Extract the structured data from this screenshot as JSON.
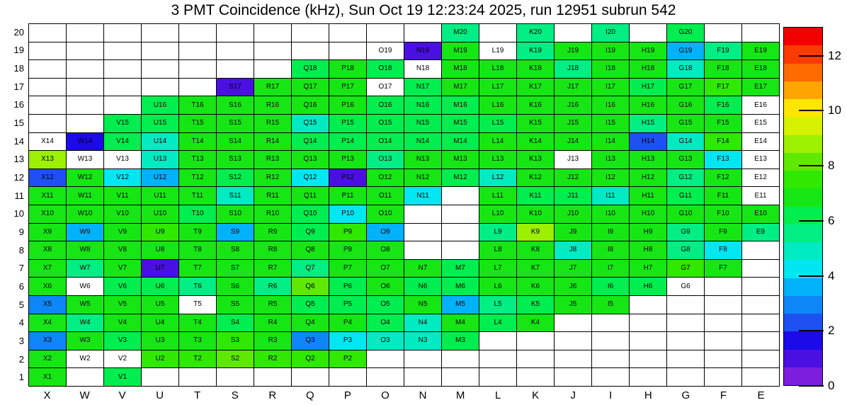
{
  "title": "3 PMT Coincidence (kHz), Sun Oct 19 12:23:24 2025, run 12951 subrun 542",
  "chart_data": {
    "type": "heatmap",
    "unit": "kHz",
    "columns": [
      "X",
      "W",
      "V",
      "U",
      "T",
      "S",
      "R",
      "Q",
      "P",
      "O",
      "N",
      "M",
      "L",
      "K",
      "J",
      "I",
      "H",
      "G",
      "F",
      "E"
    ],
    "rows": [
      20,
      19,
      18,
      17,
      16,
      15,
      14,
      13,
      12,
      11,
      10,
      9,
      8,
      7,
      6,
      5,
      4,
      3,
      2,
      1
    ],
    "cells": {
      "M20": 5.7,
      "K20": 5.7,
      "I20": 5.7,
      "G20": 6.2,
      "O19": null,
      "N19": 1.0,
      "M19": 6.9,
      "L19": null,
      "K19": 5.6,
      "J19": 6.9,
      "I19": 6.9,
      "H19": 6.9,
      "G19": 3.6,
      "F19": 5.8,
      "E19": 6.9,
      "Q18": 6.2,
      "P18": 6.9,
      "O18": 6.2,
      "N18": null,
      "M18": 6.9,
      "L18": 6.9,
      "K18": 6.9,
      "J18": 5.6,
      "I18": 6.9,
      "H18": 6.9,
      "G18": 4.8,
      "F18": 6.9,
      "E18": 6.9,
      "S17": 1.0,
      "R17": 6.9,
      "Q17": 6.9,
      "P17": 6.9,
      "O17": null,
      "N17": 6.2,
      "M17": 6.9,
      "L17": 6.9,
      "K17": 6.9,
      "J17": 6.9,
      "I17": 6.9,
      "H17": 6.0,
      "G17": 6.9,
      "F17": 7.5,
      "E17": 6.9,
      "U16": 6.2,
      "T16": 6.9,
      "S16": 6.9,
      "R16": 6.9,
      "Q16": 6.9,
      "P16": 6.9,
      "O16": 6.2,
      "N16": 6.2,
      "M16": 6.2,
      "L16": 6.9,
      "K16": 6.9,
      "J16": 6.9,
      "I16": 6.9,
      "H16": 6.9,
      "G16": 6.9,
      "F16": 6.2,
      "E16": null,
      "V15": 6.2,
      "U15": 6.2,
      "T15": 6.9,
      "S15": 6.9,
      "R15": 6.9,
      "Q15": 4.9,
      "P15": 6.2,
      "O15": 6.2,
      "N15": 6.2,
      "M15": 6.2,
      "L15": 6.2,
      "K15": 6.9,
      "J15": 6.9,
      "I15": 6.9,
      "H15": 5.7,
      "G15": 6.9,
      "F15": 6.9,
      "E15": null,
      "X14": null,
      "W14": 1.6,
      "V14": 6.0,
      "U14": 4.8,
      "T14": 6.9,
      "S14": 6.9,
      "R14": 6.9,
      "Q14": 6.2,
      "P14": 6.2,
      "O14": 6.2,
      "N14": 6.2,
      "M14": 6.2,
      "L14": 6.9,
      "K14": 6.9,
      "J14": 6.9,
      "I14": 6.9,
      "H14": 2.3,
      "G14": 4.8,
      "F14": 7.5,
      "E14": null,
      "X13": 8.8,
      "W13": null,
      "V13": null,
      "U13": 4.8,
      "T13": 6.9,
      "S13": 6.9,
      "R13": 6.9,
      "Q13": 6.9,
      "P13": 6.9,
      "O13": 5.6,
      "N13": 6.9,
      "M13": 6.9,
      "L13": 6.9,
      "K13": 6.9,
      "J13": null,
      "I13": 6.9,
      "H13": 6.9,
      "G13": 6.9,
      "F13": 4.2,
      "E13": null,
      "X12": 2.3,
      "W12": 6.9,
      "V12": 4.3,
      "U12": 3.6,
      "T12": 6.9,
      "S12": 6.2,
      "R12": 6.9,
      "Q12": 4.2,
      "P12": 0.9,
      "O12": 6.9,
      "N12": 6.9,
      "M12": 6.2,
      "L12": 4.8,
      "K12": 6.9,
      "J12": 6.9,
      "I12": 6.9,
      "H12": 6.9,
      "G12": 5.6,
      "F12": 6.9,
      "E12": null,
      "X11": 6.9,
      "W11": 6.9,
      "V11": 6.9,
      "U11": 6.9,
      "T11": 6.9,
      "S11": 4.8,
      "R11": 6.9,
      "Q11": 6.9,
      "P11": 6.9,
      "O11": 6.9,
      "N11": 4.2,
      "L11": 6.9,
      "K11": 6.2,
      "J11": 6.2,
      "I11": 4.8,
      "H11": 6.9,
      "G11": 6.0,
      "F11": 6.9,
      "E11": null,
      "X10": 6.9,
      "W10": 6.9,
      "V10": 6.9,
      "U10": 6.9,
      "T10": 5.9,
      "S10": 6.9,
      "R10": 6.9,
      "Q10": 6.2,
      "P10": 4.2,
      "O10": 6.9,
      "L10": 6.9,
      "K10": 6.9,
      "J10": 6.9,
      "I10": 6.9,
      "H10": 6.9,
      "G10": 6.9,
      "F10": 6.9,
      "E10": 6.9,
      "X9": 6.9,
      "W9": 3.6,
      "V9": 6.9,
      "U9": 7.5,
      "T9": 6.9,
      "S9": 3.6,
      "R9": 6.9,
      "Q9": 6.2,
      "P9": 7.5,
      "O9": 3.9,
      "L9": 5.6,
      "K9": 8.8,
      "J9": 6.9,
      "I9": 6.9,
      "H9": 6.9,
      "G9": 5.6,
      "F9": 6.9,
      "E9": 5.6,
      "X8": 6.9,
      "W8": 6.9,
      "V8": 6.9,
      "U8": 6.9,
      "T8": 6.9,
      "S8": 6.9,
      "R8": 6.9,
      "Q8": 6.9,
      "P8": 6.9,
      "O8": 6.9,
      "L8": 6.9,
      "K8": 6.9,
      "J8": 4.8,
      "I8": 6.9,
      "H8": 6.9,
      "G8": 5.6,
      "F8": 4.2,
      "X7": 6.9,
      "W7": 5.6,
      "V7": 6.9,
      "U7": 0.9,
      "T7": 6.9,
      "S7": 6.9,
      "R7": 6.9,
      "Q7": 5.6,
      "P7": 6.9,
      "O7": 6.9,
      "N7": 6.9,
      "M7": 6.2,
      "L7": 6.9,
      "K7": 6.9,
      "J7": 6.9,
      "I7": 6.9,
      "H7": 6.9,
      "G7": 7.5,
      "F7": 6.9,
      "X6": 6.9,
      "W6": null,
      "V6": 6.2,
      "U6": 6.2,
      "T6": 5.6,
      "S6": 6.9,
      "R6": 5.6,
      "Q6": 8.2,
      "P6": 6.2,
      "O6": 6.9,
      "N6": 6.2,
      "M6": 6.1,
      "L6": 6.9,
      "K6": 6.9,
      "J6": 6.9,
      "I6": 6.1,
      "H6": 6.1,
      "G6": null,
      "X5": 3.0,
      "W5": 6.9,
      "V5": 6.9,
      "U5": 6.9,
      "T5": null,
      "S5": 6.9,
      "R5": 6.9,
      "Q5": 6.2,
      "P5": 6.2,
      "O5": 6.2,
      "N5": 6.9,
      "M5": 3.6,
      "L5": 5.7,
      "K5": 6.3,
      "J5": 6.9,
      "I5": 6.9,
      "X4": 6.9,
      "W4": 5.6,
      "V4": 6.9,
      "U4": 6.9,
      "T4": 6.9,
      "S4": 6.2,
      "R4": 6.9,
      "Q4": 6.9,
      "P4": 6.9,
      "O4": 6.2,
      "N4": 4.8,
      "M4": 6.9,
      "L4": 6.0,
      "K4": 6.9,
      "X3": 3.0,
      "W3": 6.9,
      "V3": 6.2,
      "U3": 6.9,
      "T3": 6.9,
      "S3": 7.5,
      "R3": 6.9,
      "Q3": 2.9,
      "P3": 4.2,
      "O3": 4.9,
      "N3": 4.9,
      "M3": 6.2,
      "X2": 6.9,
      "W2": null,
      "V2": null,
      "U2": 7.6,
      "T2": 7.6,
      "S2": 8.2,
      "R2": 7.5,
      "Q2": 7.5,
      "P2": 7.5,
      "X1": 6.9,
      "V1": 6.2
    }
  },
  "colorbar": {
    "min": 0,
    "max": 13.05,
    "ticks": [
      0,
      2,
      4,
      6,
      8,
      10,
      12
    ],
    "bands": [
      "#7D1EDF",
      "#4A10E2",
      "#1C0AE8",
      "#1E50F2",
      "#0D87F7",
      "#00B2FA",
      "#00E7F2",
      "#00EBC2",
      "#00EE83",
      "#00EE4F",
      "#16E714",
      "#2FE900",
      "#5FE900",
      "#9CF000",
      "#D6F200",
      "#FFE600",
      "#FFA500",
      "#FF6B00",
      "#FB3B00",
      "#F20000"
    ]
  }
}
